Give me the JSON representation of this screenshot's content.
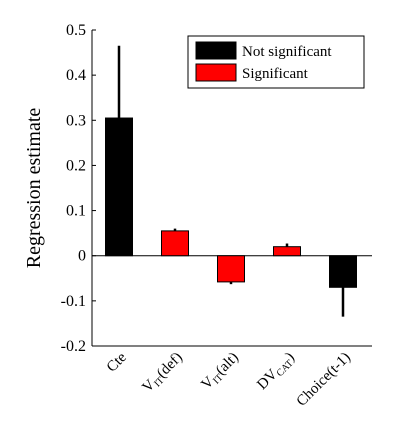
{
  "chart_data": {
    "type": "bar",
    "ylabel": "Regression estimate",
    "ylim": [
      -0.2,
      0.5
    ],
    "yticks": [
      "-0.2",
      "-0.1",
      "0",
      "0.1",
      "0.2",
      "0.3",
      "0.4",
      "0.5"
    ],
    "ytick_values": [
      -0.2,
      -0.1,
      0,
      0.1,
      0.2,
      0.3,
      0.4,
      0.5
    ],
    "categories": [
      {
        "main": "Cte",
        "sub": "",
        "tail": ""
      },
      {
        "main": "V",
        "sub": "IT",
        "tail": "(def)"
      },
      {
        "main": "V",
        "sub": "IT",
        "tail": "(alt)"
      },
      {
        "main": "DV",
        "sub": "CAT",
        "tail": ")"
      },
      {
        "main": "Choice(t-1)",
        "sub": "",
        "tail": ""
      }
    ],
    "values": [
      0.305,
      0.055,
      -0.058,
      0.02,
      -0.07
    ],
    "errors": [
      0.16,
      0.005,
      0.005,
      0.007,
      0.065
    ],
    "significant": [
      false,
      true,
      true,
      true,
      false
    ],
    "legend": {
      "position": "top-right",
      "entries": [
        {
          "label": "Not significant",
          "color": "#000000"
        },
        {
          "label": "Significant",
          "color": "#ff0000"
        }
      ]
    },
    "colors": {
      "not_significant": "#000000",
      "significant": "#ff0000",
      "error_bar": "#000000"
    }
  }
}
